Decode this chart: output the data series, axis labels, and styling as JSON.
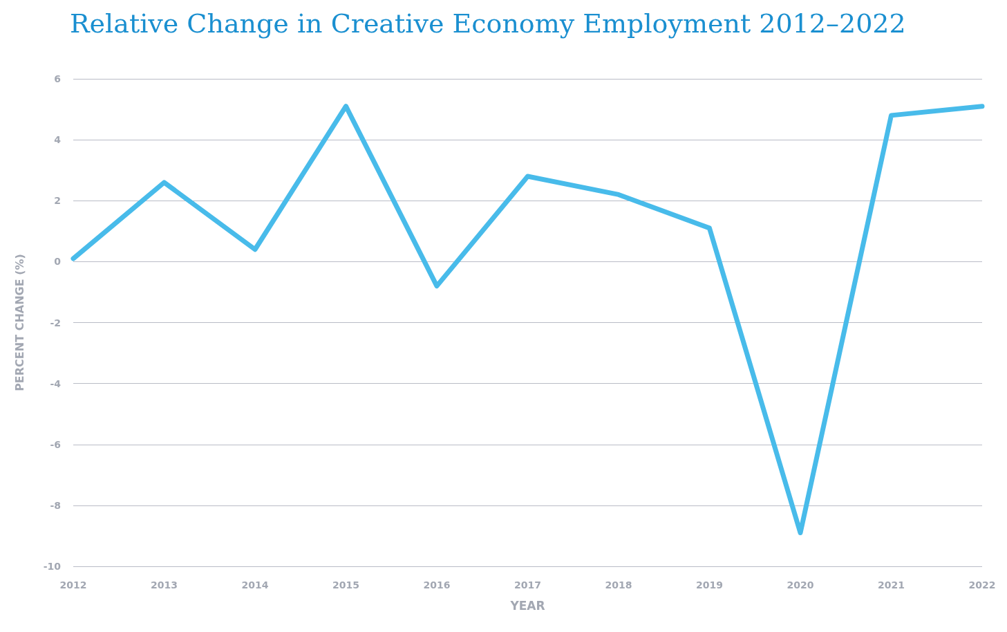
{
  "chart_data": {
    "type": "line",
    "title": "Relative Change in Creative Economy Employment 2012–2022",
    "xlabel": "YEAR",
    "ylabel": "PERCENT CHANGE (%)",
    "categories": [
      "2012",
      "2013",
      "2014",
      "2015",
      "2016",
      "2017",
      "2018",
      "2019",
      "2020",
      "2021",
      "2022"
    ],
    "series": [
      {
        "color": "#48bbea",
        "values": [
          0.1,
          2.6,
          0.4,
          5.1,
          -0.8,
          2.8,
          2.2,
          1.1,
          -8.9,
          4.8,
          5.1
        ]
      }
    ],
    "ylim": [
      -10,
      6
    ],
    "yticks": [
      -10,
      -8,
      -6,
      -4,
      -2,
      0,
      2,
      4,
      6
    ],
    "grid": "y",
    "marker": "none",
    "line_style": "solid"
  }
}
